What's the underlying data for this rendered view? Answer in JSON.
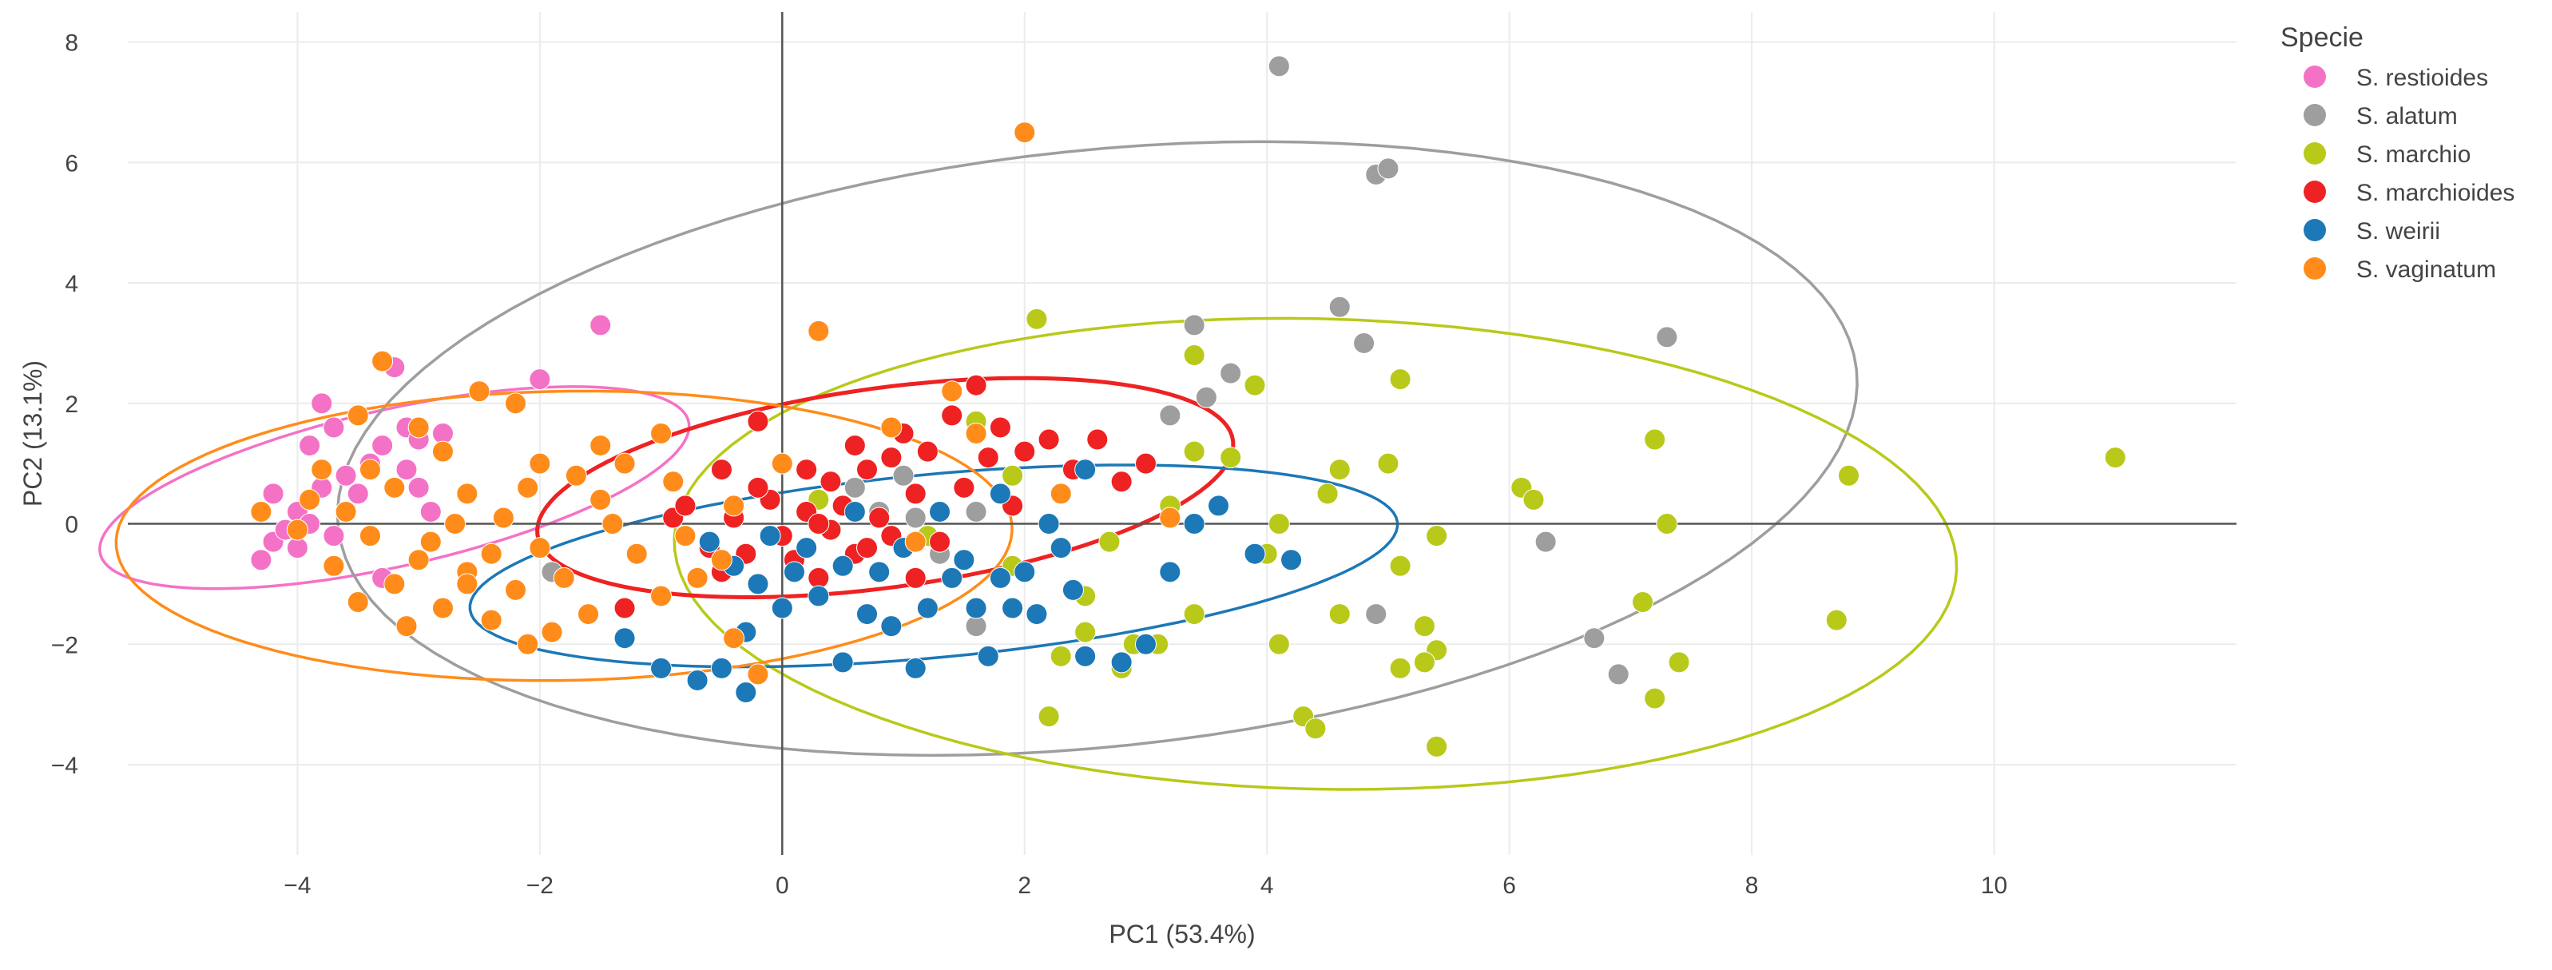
{
  "chart_data": {
    "type": "scatter",
    "title": "",
    "xlabel": "PC1 (53.4%)",
    "ylabel": "PC2 (13.1%)",
    "xlim": [
      -5.4,
      12
    ],
    "ylim": [
      -5.5,
      8.5
    ],
    "xticks": [
      -4,
      -2,
      0,
      2,
      4,
      6,
      8,
      10
    ],
    "yticks": [
      -4,
      -2,
      0,
      2,
      4,
      6,
      8
    ],
    "grid": true,
    "legend": {
      "title": "Specie",
      "placement": "right"
    },
    "series": [
      {
        "name": "S. restioides",
        "color": "#f472c6",
        "ellipse": {
          "cx": -3.2,
          "cy": 0.6,
          "rx": 2.7,
          "ry": 1.2,
          "angle_deg": 29
        },
        "points": [
          [
            -4.3,
            -0.6
          ],
          [
            -4.2,
            -0.3
          ],
          [
            -4.1,
            -0.1
          ],
          [
            -4.0,
            0.2
          ],
          [
            -4.2,
            0.5
          ],
          [
            -3.9,
            0.0
          ],
          [
            -3.7,
            -0.2
          ],
          [
            -3.8,
            0.6
          ],
          [
            -3.6,
            0.8
          ],
          [
            -3.9,
            1.3
          ],
          [
            -3.8,
            2.0
          ],
          [
            -3.7,
            1.6
          ],
          [
            -3.4,
            1.0
          ],
          [
            -3.3,
            1.3
          ],
          [
            -3.1,
            1.6
          ],
          [
            -3.0,
            1.4
          ],
          [
            -3.2,
            2.6
          ],
          [
            -3.5,
            0.5
          ],
          [
            -3.4,
            -0.2
          ],
          [
            -3.3,
            -0.9
          ],
          [
            -2.9,
            0.2
          ],
          [
            -3.1,
            0.9
          ],
          [
            -2.8,
            1.5
          ],
          [
            -1.5,
            3.3
          ],
          [
            -2.0,
            2.4
          ],
          [
            -4.0,
            -0.4
          ],
          [
            -3.6,
            0.2
          ],
          [
            -3.0,
            0.6
          ]
        ]
      },
      {
        "name": "S. alatum",
        "color": "#9e9e9e",
        "ellipse": {
          "cx": 2.6,
          "cy": 1.25,
          "rx": 6.5,
          "ry": 4.8,
          "angle_deg": 23
        },
        "points": [
          [
            4.1,
            7.6
          ],
          [
            4.9,
            5.8
          ],
          [
            5.0,
            5.9
          ],
          [
            4.6,
            3.6
          ],
          [
            4.8,
            3.0
          ],
          [
            3.4,
            3.3
          ],
          [
            3.7,
            2.5
          ],
          [
            3.5,
            2.1
          ],
          [
            3.2,
            1.8
          ],
          [
            7.3,
            3.1
          ],
          [
            6.3,
            -0.3
          ],
          [
            6.7,
            -1.9
          ],
          [
            6.9,
            -2.5
          ],
          [
            4.9,
            -1.5
          ],
          [
            1.0,
            0.8
          ],
          [
            0.6,
            0.6
          ],
          [
            1.1,
            0.1
          ],
          [
            1.6,
            0.2
          ],
          [
            1.3,
            -0.5
          ],
          [
            1.6,
            -1.7
          ],
          [
            0.8,
            0.2
          ],
          [
            -1.9,
            -0.8
          ]
        ]
      },
      {
        "name": "S. marchio",
        "color": "#b8c91a",
        "ellipse": {
          "cx": 4.4,
          "cy": -0.5,
          "rx": 5.3,
          "ry": 3.9,
          "angle_deg": -5
        },
        "points": [
          [
            11.0,
            1.1
          ],
          [
            8.8,
            0.8
          ],
          [
            8.7,
            -1.6
          ],
          [
            7.2,
            1.4
          ],
          [
            7.3,
            0.0
          ],
          [
            7.1,
            -1.3
          ],
          [
            7.4,
            -2.3
          ],
          [
            7.2,
            -2.9
          ],
          [
            6.1,
            0.6
          ],
          [
            6.2,
            0.4
          ],
          [
            5.4,
            -0.2
          ],
          [
            5.3,
            -1.7
          ],
          [
            5.4,
            -2.1
          ],
          [
            5.3,
            -2.3
          ],
          [
            5.4,
            -3.7
          ],
          [
            5.1,
            2.4
          ],
          [
            5.0,
            1.0
          ],
          [
            5.1,
            -0.7
          ],
          [
            5.1,
            -2.4
          ],
          [
            4.6,
            0.9
          ],
          [
            4.5,
            0.5
          ],
          [
            4.6,
            -1.5
          ],
          [
            4.3,
            -3.2
          ],
          [
            4.4,
            -3.4
          ],
          [
            4.1,
            -2.0
          ],
          [
            4.1,
            0.0
          ],
          [
            4.0,
            -0.5
          ],
          [
            3.9,
            2.3
          ],
          [
            3.4,
            2.8
          ],
          [
            3.4,
            1.2
          ],
          [
            3.7,
            1.1
          ],
          [
            3.2,
            0.3
          ],
          [
            3.4,
            -1.5
          ],
          [
            3.1,
            -2.0
          ],
          [
            2.9,
            -2.0
          ],
          [
            2.8,
            -2.4
          ],
          [
            2.7,
            -0.3
          ],
          [
            2.5,
            -1.2
          ],
          [
            2.5,
            -1.8
          ],
          [
            2.3,
            -2.2
          ],
          [
            2.2,
            -3.2
          ],
          [
            2.1,
            -1.5
          ],
          [
            2.1,
            3.4
          ],
          [
            1.9,
            0.8
          ],
          [
            1.6,
            1.7
          ],
          [
            1.9,
            -0.7
          ],
          [
            1.5,
            0.6
          ],
          [
            -0.6,
            -0.3
          ],
          [
            0.3,
            0.4
          ],
          [
            1.2,
            -0.2
          ]
        ]
      },
      {
        "name": "S. marchioides",
        "color": "#ee2222",
        "ellipse": {
          "cx": 0.85,
          "cy": 0.6,
          "rx": 3.0,
          "ry": 1.6,
          "angle_deg": 20
        },
        "points": [
          [
            -1.3,
            -1.4
          ],
          [
            -0.9,
            0.1
          ],
          [
            -0.8,
            0.3
          ],
          [
            -0.6,
            -0.4
          ],
          [
            -0.5,
            0.9
          ],
          [
            -0.4,
            0.1
          ],
          [
            -0.3,
            -0.5
          ],
          [
            -0.2,
            1.7
          ],
          [
            -0.1,
            0.4
          ],
          [
            0.0,
            -0.2
          ],
          [
            0.1,
            -0.6
          ],
          [
            0.2,
            0.2
          ],
          [
            0.3,
            -0.9
          ],
          [
            0.4,
            0.7
          ],
          [
            0.5,
            0.3
          ],
          [
            0.6,
            -0.5
          ],
          [
            0.7,
            0.9
          ],
          [
            0.8,
            0.1
          ],
          [
            0.9,
            1.1
          ],
          [
            1.0,
            1.5
          ],
          [
            1.1,
            0.5
          ],
          [
            1.2,
            1.2
          ],
          [
            1.3,
            -0.3
          ],
          [
            1.4,
            1.8
          ],
          [
            1.5,
            0.6
          ],
          [
            1.6,
            2.3
          ],
          [
            1.7,
            1.1
          ],
          [
            1.8,
            1.6
          ],
          [
            1.9,
            0.3
          ],
          [
            2.0,
            1.2
          ],
          [
            2.2,
            1.4
          ],
          [
            2.4,
            0.9
          ],
          [
            2.6,
            1.4
          ],
          [
            2.8,
            0.7
          ],
          [
            3.0,
            1.0
          ],
          [
            0.4,
            -0.1
          ],
          [
            0.2,
            0.9
          ],
          [
            0.6,
            1.3
          ],
          [
            -0.5,
            -0.8
          ],
          [
            0.9,
            -0.2
          ],
          [
            1.1,
            -0.9
          ],
          [
            -0.2,
            0.6
          ],
          [
            0.3,
            0.0
          ],
          [
            0.7,
            -0.4
          ]
        ]
      },
      {
        "name": "S. weirii",
        "color": "#1c78b6",
        "ellipse": {
          "cx": 1.25,
          "cy": -0.7,
          "rx": 3.9,
          "ry": 1.5,
          "angle_deg": 12
        },
        "points": [
          [
            -1.3,
            -1.9
          ],
          [
            -1.0,
            -2.4
          ],
          [
            -0.7,
            -2.6
          ],
          [
            -0.5,
            -2.4
          ],
          [
            -0.3,
            -2.8
          ],
          [
            -0.3,
            -1.8
          ],
          [
            -0.6,
            -0.3
          ],
          [
            -0.4,
            -0.7
          ],
          [
            -0.2,
            -1.0
          ],
          [
            0.0,
            -1.4
          ],
          [
            0.1,
            -0.8
          ],
          [
            0.3,
            -1.2
          ],
          [
            0.5,
            -0.7
          ],
          [
            0.5,
            -2.3
          ],
          [
            0.7,
            -1.5
          ],
          [
            0.8,
            -0.8
          ],
          [
            0.9,
            -1.7
          ],
          [
            1.0,
            -0.4
          ],
          [
            1.1,
            -2.4
          ],
          [
            1.2,
            -1.4
          ],
          [
            1.4,
            -0.9
          ],
          [
            1.5,
            -0.6
          ],
          [
            1.6,
            -1.4
          ],
          [
            1.7,
            -2.2
          ],
          [
            1.8,
            -0.9
          ],
          [
            1.9,
            -1.4
          ],
          [
            2.0,
            -0.8
          ],
          [
            2.1,
            -1.5
          ],
          [
            2.3,
            -0.4
          ],
          [
            2.4,
            -1.1
          ],
          [
            2.5,
            0.9
          ],
          [
            2.5,
            -2.2
          ],
          [
            2.8,
            -2.3
          ],
          [
            3.0,
            -2.0
          ],
          [
            3.2,
            -0.8
          ],
          [
            3.4,
            0.0
          ],
          [
            3.6,
            0.3
          ],
          [
            3.9,
            -0.5
          ],
          [
            4.2,
            -0.6
          ],
          [
            -0.1,
            -0.2
          ],
          [
            0.2,
            -0.4
          ],
          [
            0.6,
            0.2
          ],
          [
            1.3,
            0.2
          ],
          [
            1.8,
            0.5
          ],
          [
            2.2,
            0.0
          ]
        ]
      },
      {
        "name": "S. vaginatum",
        "color": "#ff8c1a",
        "ellipse": {
          "cx": -1.8,
          "cy": -0.2,
          "rx": 3.7,
          "ry": 2.4,
          "angle_deg": 3
        },
        "points": [
          [
            2.0,
            6.5
          ],
          [
            0.3,
            3.2
          ],
          [
            -3.3,
            2.7
          ],
          [
            -2.5,
            2.2
          ],
          [
            -2.2,
            2.0
          ],
          [
            -3.5,
            1.8
          ],
          [
            -3.0,
            1.6
          ],
          [
            -1.0,
            1.5
          ],
          [
            -1.5,
            1.3
          ],
          [
            -2.8,
            1.2
          ],
          [
            -2.0,
            1.0
          ],
          [
            -1.7,
            0.8
          ],
          [
            -3.2,
            0.6
          ],
          [
            -2.6,
            0.5
          ],
          [
            -3.9,
            0.4
          ],
          [
            -4.3,
            0.2
          ],
          [
            -3.6,
            0.2
          ],
          [
            -2.3,
            0.1
          ],
          [
            -1.4,
            0.0
          ],
          [
            -0.8,
            -0.2
          ],
          [
            -3.4,
            -0.2
          ],
          [
            -2.9,
            -0.3
          ],
          [
            -2.0,
            -0.4
          ],
          [
            -1.2,
            -0.5
          ],
          [
            -0.5,
            -0.6
          ],
          [
            -3.7,
            -0.7
          ],
          [
            -2.6,
            -0.8
          ],
          [
            -1.8,
            -0.9
          ],
          [
            -3.2,
            -1.0
          ],
          [
            -2.2,
            -1.1
          ],
          [
            -1.0,
            -1.2
          ],
          [
            -3.5,
            -1.3
          ],
          [
            -2.8,
            -1.4
          ],
          [
            -1.6,
            -1.5
          ],
          [
            -2.4,
            -1.6
          ],
          [
            -3.1,
            -1.7
          ],
          [
            -1.9,
            -1.8
          ],
          [
            -0.4,
            -1.9
          ],
          [
            -2.1,
            -2.0
          ],
          [
            -0.2,
            -2.5
          ],
          [
            -4.0,
            -0.1
          ],
          [
            -3.8,
            0.9
          ],
          [
            -2.7,
            0.0
          ],
          [
            -2.4,
            -0.5
          ],
          [
            -1.5,
            0.4
          ],
          [
            -0.9,
            0.7
          ],
          [
            -0.7,
            -0.9
          ],
          [
            -0.4,
            0.3
          ],
          [
            0.0,
            1.0
          ],
          [
            1.4,
            2.2
          ],
          [
            1.6,
            1.5
          ],
          [
            0.9,
            1.6
          ],
          [
            2.3,
            0.5
          ],
          [
            3.2,
            0.1
          ],
          [
            1.1,
            -0.3
          ],
          [
            -2.6,
            -1.0
          ],
          [
            -3.0,
            -0.6
          ],
          [
            -1.3,
            1.0
          ],
          [
            -2.1,
            0.6
          ],
          [
            -3.4,
            0.9
          ]
        ]
      }
    ]
  }
}
